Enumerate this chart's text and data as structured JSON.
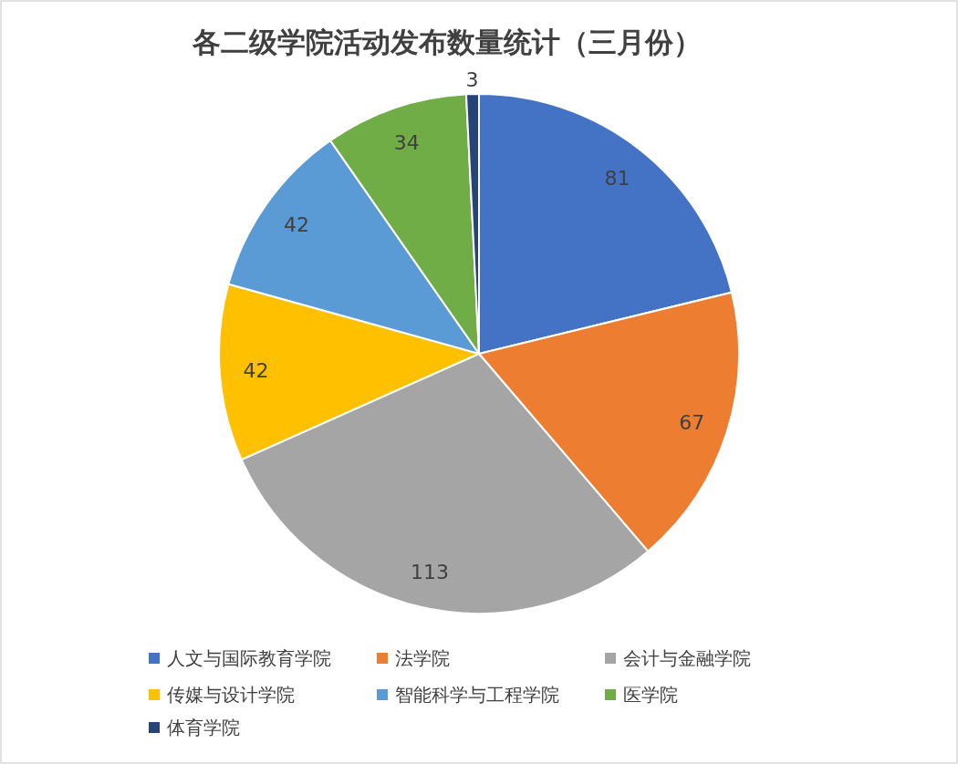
{
  "chart_data": {
    "type": "pie",
    "title": "各二级学院活动发布数量统计（三月份）",
    "categories": [
      "人文与国际教育学院",
      "法学院",
      "会计与金融学院",
      "传媒与设计学院",
      "智能科学与工程学院",
      "医学院",
      "体育学院"
    ],
    "values": [
      81,
      67,
      113,
      42,
      42,
      34,
      3
    ],
    "colors": [
      "#4472c4",
      "#ed7d31",
      "#a5a5a5",
      "#ffc000",
      "#5b9bd5",
      "#70ad47",
      "#264478"
    ],
    "data_labels": true,
    "legend": "bottom"
  }
}
